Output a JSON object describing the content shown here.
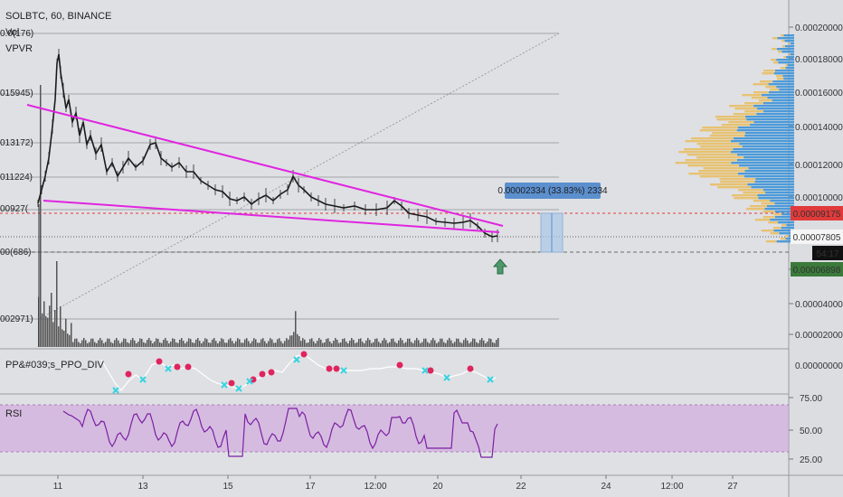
{
  "chart_title": "SOLBTC, 60, BINANCE",
  "indicators": {
    "vol": "Vol",
    "vpvr": "VPVR",
    "ppo": "PP&#039;s_PPO_DIV",
    "rsi": "RSI"
  },
  "price_scale": [
    "0.00020000",
    "0.00018000",
    "0.00016000",
    "0.00014000",
    "0.00012000",
    "0.00010000",
    "0.00008000",
    "0.00006000",
    "0.00004000",
    "0.00002000"
  ],
  "left_labels": [
    "0.0(176)",
    "015945)",
    "013172)",
    "011224)",
    "00927(",
    "00(686)",
    "002971)"
  ],
  "price_badges": {
    "red_line": "0.00009175",
    "last_price": "0.00007805",
    "countdown": "54:17",
    "green_line": "0.00006898"
  },
  "measure_label": "0.00002334 (33.83%) 2334",
  "ppo_scale": "0.00000000",
  "rsi_scale": [
    "75.00",
    "50.00",
    "25.00"
  ],
  "time_axis": [
    "11",
    "13",
    "15",
    "17",
    "12:00",
    "20",
    "22",
    "24",
    "12:00",
    "27"
  ],
  "colors": {
    "background": "#dfe0e4",
    "trendline": "#e025e0",
    "red_line": "#e03a3a",
    "green_badge": "#3b7a3b",
    "vpvr_up": "#4d9ad8",
    "vpvr_down": "#e7c272",
    "rsi_band": "#cfa7dd",
    "rsi_line": "#7b1fa2",
    "measure_box": "#a9c8e6",
    "measure_label_bg": "#5b8fce"
  },
  "chart_data": {
    "type": "candlestick",
    "title": "SOLBTC, 60, BINANCE",
    "close_approx": [
      0.000116,
      0.000159,
      0.00015,
      0.000145,
      0.00014,
      0.00013,
      0.000125,
      0.000118,
      0.000122,
      0.000128,
      0.000132,
      0.000126,
      0.00012,
      0.000112,
      0.000105,
      0.0001,
      9.8e-05,
      0.000104,
      0.000102,
      0.000108,
      0.000111,
      0.000104,
      9.8e-05,
      9.4e-05,
      9.3e-05,
      9.2e-05,
      9.1e-05,
      9e-05,
      8.9e-05,
      8.8e-05,
      8.7e-05,
      8.6e-05,
      8.6e-05,
      7.8e-05
    ],
    "price_range": [
      1e-05,
      0.00021
    ],
    "last_price": 7.805e-05
  }
}
